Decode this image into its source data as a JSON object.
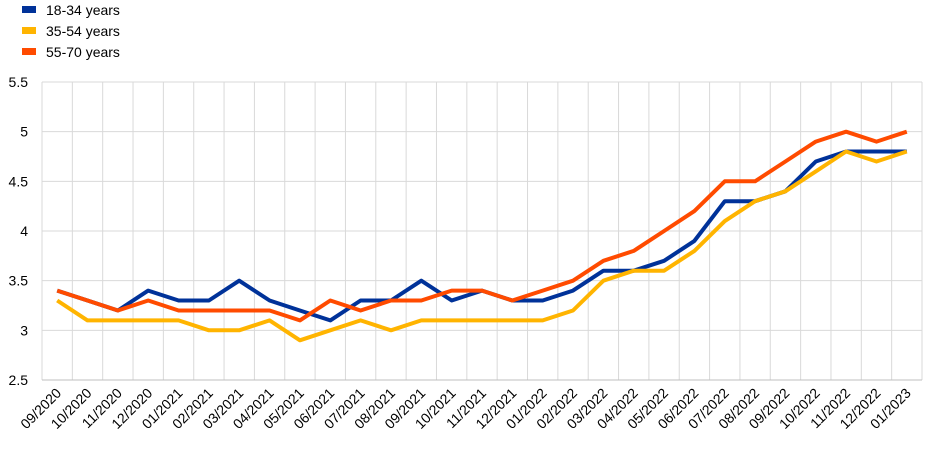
{
  "chart_data": {
    "type": "line",
    "categories": [
      "09/2020",
      "10/2020",
      "11/2020",
      "12/2020",
      "01/2021",
      "02/2021",
      "03/2021",
      "04/2021",
      "05/2021",
      "06/2021",
      "07/2021",
      "08/2021",
      "09/2021",
      "10/2021",
      "11/2021",
      "12/2021",
      "01/2022",
      "02/2022",
      "03/2022",
      "04/2022",
      "05/2022",
      "06/2022",
      "07/2022",
      "08/2022",
      "09/2022",
      "10/2022",
      "11/2022",
      "12/2022",
      "01/2023"
    ],
    "series": [
      {
        "name": "18-34 years",
        "color": "#003299",
        "values": [
          3.4,
          3.3,
          3.2,
          3.4,
          3.3,
          3.3,
          3.5,
          3.3,
          3.2,
          3.1,
          3.3,
          3.3,
          3.5,
          3.3,
          3.4,
          3.3,
          3.3,
          3.4,
          3.6,
          3.6,
          3.7,
          3.9,
          4.3,
          4.3,
          4.4,
          4.7,
          4.8,
          4.8,
          4.8
        ]
      },
      {
        "name": "35-54 years",
        "color": "#FFB400",
        "values": [
          3.3,
          3.1,
          3.1,
          3.1,
          3.1,
          3.0,
          3.0,
          3.1,
          2.9,
          3.0,
          3.1,
          3.0,
          3.1,
          3.1,
          3.1,
          3.1,
          3.1,
          3.2,
          3.5,
          3.6,
          3.6,
          3.8,
          4.1,
          4.3,
          4.4,
          4.6,
          4.8,
          4.7,
          4.8
        ]
      },
      {
        "name": "55-70 years",
        "color": "#FF4B00",
        "values": [
          3.4,
          3.3,
          3.2,
          3.3,
          3.2,
          3.2,
          3.2,
          3.2,
          3.1,
          3.3,
          3.2,
          3.3,
          3.3,
          3.4,
          3.4,
          3.3,
          3.4,
          3.5,
          3.7,
          3.8,
          4.0,
          4.2,
          4.5,
          4.5,
          4.7,
          4.9,
          5.0,
          4.9,
          5.0
        ]
      }
    ],
    "yticks": [
      "2.5",
      "3",
      "3.5",
      "4",
      "4.5",
      "5",
      "5.5"
    ],
    "ylim": [
      2.5,
      5.5
    ],
    "grid": true,
    "legend_position": "top-left"
  }
}
